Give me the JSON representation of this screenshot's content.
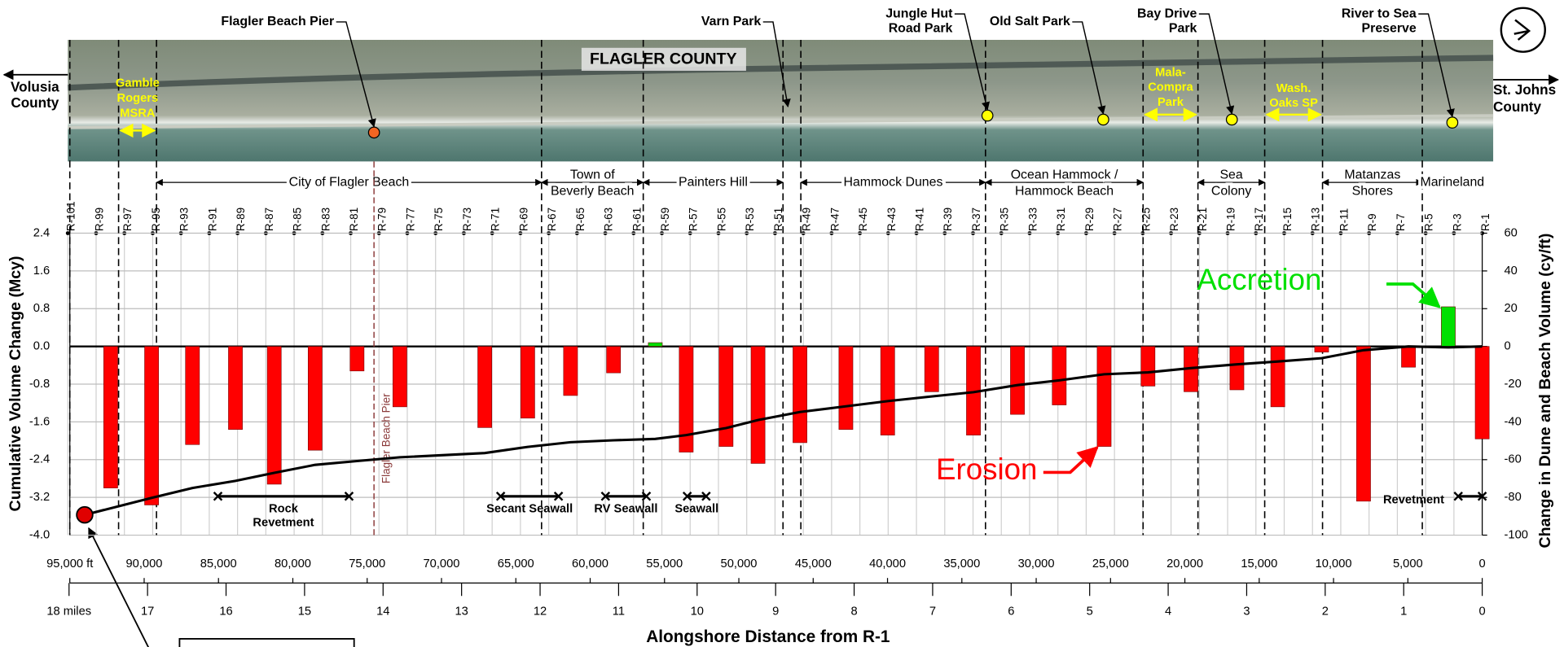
{
  "chart_data": {
    "type": "bar",
    "x_label": "Alongshore Distance from R-1",
    "y_label": "Cumulative Volume Change (Mcy)",
    "y2_label": "Change in Dune and Beach Volume (cy/ft)",
    "xlim": [
      95000,
      0
    ],
    "xticks": [
      {
        "value": 95000,
        "label": "95,000 ft"
      },
      {
        "value": 90000,
        "label": "90,000"
      },
      {
        "value": 85000,
        "label": "85,000"
      },
      {
        "value": 80000,
        "label": "80,000"
      },
      {
        "value": 75000,
        "label": "75,000"
      },
      {
        "value": 70000,
        "label": "70,000"
      },
      {
        "value": 65000,
        "label": "65,000"
      },
      {
        "value": 60000,
        "label": "60,000"
      },
      {
        "value": 55000,
        "label": "55,000"
      },
      {
        "value": 50000,
        "label": "50,000"
      },
      {
        "value": 45000,
        "label": "45,000"
      },
      {
        "value": 40000,
        "label": "40,000"
      },
      {
        "value": 35000,
        "label": "35,000"
      },
      {
        "value": 30000,
        "label": "30,000"
      },
      {
        "value": 25000,
        "label": "25,000"
      },
      {
        "value": 20000,
        "label": "20,000"
      },
      {
        "value": 15000,
        "label": "15,000"
      },
      {
        "value": 10000,
        "label": "10,000"
      },
      {
        "value": 5000,
        "label": "5,000"
      },
      0
    ],
    "x2lim": [
      17.99,
      0
    ],
    "x2ticks": [
      {
        "value": 18,
        "label": "18 miles"
      },
      17,
      16,
      15,
      14,
      13,
      12,
      11,
      10,
      9,
      8,
      7,
      6,
      5,
      4,
      3,
      2,
      1,
      0
    ],
    "ylim": [
      -4,
      2.4
    ],
    "yticks": [
      {
        "value": -4,
        "label": "-4.0"
      },
      -3.2,
      -2.4,
      -1.6,
      -0.8,
      {
        "value": 0,
        "label": "0.0"
      },
      0.8,
      1.6,
      2.4
    ],
    "y2lim": [
      -100,
      60
    ],
    "y2ticks": [
      -100,
      -80,
      -60,
      -40,
      -20,
      0,
      20,
      40,
      60
    ],
    "grid": true,
    "series": [
      {
        "type": "bar",
        "axis": "y2",
        "color": "#ff0000",
        "positive_color": "#00e000",
        "x": [
          92250,
          89500,
          86750,
          83860,
          81250,
          78500,
          75680,
          72800,
          67090,
          64200,
          61320,
          58430,
          55620,
          53540,
          50860,
          48710,
          45890,
          42800,
          39990,
          37030,
          34220,
          31260,
          28450,
          25430,
          22480,
          19590,
          16500,
          13750,
          10800,
          7980,
          4960,
          2280,
          0
        ],
        "values": [
          -75,
          -84,
          -52,
          -44,
          -73,
          -55,
          -13,
          -32,
          -43,
          -38,
          -26,
          -14,
          2,
          -56,
          -53,
          -62,
          -51,
          -44,
          -47,
          -24,
          -47,
          -36,
          -31,
          -53,
          -21,
          -24,
          -23,
          -32,
          -3,
          -82,
          -11,
          21,
          -49
        ]
      },
      {
        "type": "line",
        "color": "#000000",
        "start_color": "#e00000",
        "x": [
          94000,
          89500,
          86750,
          83860,
          81250,
          78500,
          75680,
          72800,
          67090,
          64200,
          61320,
          58430,
          55620,
          53540,
          50860,
          48710,
          45890,
          42800,
          39990,
          37030,
          34220,
          31260,
          28450,
          25430,
          22480,
          19590,
          16500,
          13750,
          10800,
          7980,
          4960,
          2280,
          0
        ],
        "values": [
          -3.57,
          -3.21,
          -3.0,
          -2.85,
          -2.68,
          -2.51,
          -2.43,
          -2.35,
          -2.26,
          -2.13,
          -2.03,
          -1.99,
          -1.96,
          -1.88,
          -1.73,
          -1.56,
          -1.39,
          -1.27,
          -1.16,
          -1.06,
          -0.97,
          -0.82,
          -0.72,
          -0.59,
          -0.55,
          -0.46,
          -0.38,
          -0.32,
          -0.25,
          -0.08,
          0,
          -0.02,
          0
        ]
      }
    ],
    "annotations": [
      {
        "text": "Erosion",
        "color": "#ff0000"
      },
      {
        "text": "Accretion",
        "color": "#00e000"
      }
    ],
    "monuments": [
      "R-101",
      "R-99",
      "R-97",
      "R-95",
      "R-93",
      "R-91",
      "R-89",
      "R-87",
      "R-85",
      "R-83",
      "R-81",
      "R-79",
      "R-77",
      "R-75",
      "R-73",
      "R-71",
      "R-69",
      "R-67",
      "R-65",
      "R-63",
      "R-61",
      "R-59",
      "R-57",
      "R-55",
      "R-53",
      "R-51",
      "R-49",
      "R-47",
      "R-45",
      "R-43",
      "R-41",
      "R-39",
      "R-37",
      "R-35",
      "R-33",
      "R-31",
      "R-29",
      "R-27",
      "R-25",
      "R-23",
      "R-21",
      "R-19",
      "R-17",
      "R-15",
      "R-13",
      "R-11",
      "R-9",
      "R-7",
      "R-5",
      "R-3",
      "R-1"
    ],
    "boundaries": [
      95000,
      91720,
      89170,
      63270,
      56430,
      47030,
      45830,
      33410,
      22810,
      19120,
      14630,
      10740,
      4030
    ],
    "regions": [
      {
        "label": [
          "City of Flagler Beach"
        ],
        "from": 89170,
        "to": 63270
      },
      {
        "label": [
          "Town of",
          "Beverly Beach"
        ],
        "from": 63270,
        "to": 56430
      },
      {
        "label": [
          "Painters Hill"
        ],
        "from": 56430,
        "to": 47030
      },
      {
        "label": [
          "Hammock Dunes"
        ],
        "from": 45830,
        "to": 33410
      },
      {
        "label": [
          "Ocean Hammock /",
          "Hammock Beach"
        ],
        "from": 33410,
        "to": 22810
      },
      {
        "label": [
          "Sea",
          "Colony"
        ],
        "from": 19120,
        "to": 14630
      },
      {
        "label": [
          "Matanzas",
          "Shores"
        ],
        "from": 10740,
        "to": 4030
      },
      {
        "label": [
          "Marineland"
        ],
        "from": 4030,
        "to": 0
      }
    ],
    "structures": [
      {
        "label": [
          "Rock",
          "Revetment"
        ],
        "from": 85040,
        "to": 76220
      },
      {
        "label": [
          "Secant Seawall"
        ],
        "from": 66020,
        "to": 62130
      },
      {
        "label": [
          "RV Seawall"
        ],
        "from": 58970,
        "to": 56220
      },
      {
        "label": [
          "Seawall"
        ],
        "from": 53470,
        "to": 52200
      },
      {
        "label": [
          "Revetment"
        ],
        "from": 1610,
        "to": 0
      }
    ],
    "pier_label": "Flagler Beach Pier",
    "aerial": {
      "title": "FLAGLER COUNTY",
      "left_county": [
        "Volusia",
        "County"
      ],
      "right_county": [
        "St. Johns",
        "County"
      ],
      "parks": [
        {
          "label": [
            "Gamble",
            "Rogers",
            "MSRA"
          ],
          "from": 91720,
          "to": 89170
        },
        {
          "label": [
            "Mala-",
            "Compra",
            "Park"
          ],
          "from": 22810,
          "to": 19120
        },
        {
          "label": [
            "Wash.",
            "Oaks SP"
          ],
          "from": 14630,
          "to": 10740
        }
      ],
      "places": [
        {
          "label": [
            "Flagler Beach Pier"
          ],
          "at": 74540,
          "marker_color": "#f26522"
        },
        {
          "label": [
            "Varn Park"
          ],
          "at": 46700
        },
        {
          "label": [
            "Jungle Hut",
            "Road Park"
          ],
          "at": 33280,
          "marker_color": "#ffff00"
        },
        {
          "label": [
            "Old Salt Park"
          ],
          "at": 25490,
          "marker_color": "#ffff00"
        },
        {
          "label": [
            "Bay Drive",
            "Park"
          ],
          "at": 16840,
          "marker_color": "#ffff00"
        },
        {
          "label": [
            "River to Sea",
            "Preserve"
          ],
          "at": 2010,
          "marker_color": "#ffff00"
        }
      ]
    }
  }
}
